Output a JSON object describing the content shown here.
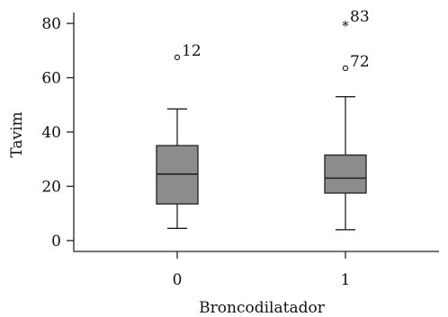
{
  "chart_data": {
    "type": "box",
    "xlabel": "Broncodilatador",
    "ylabel": "Tavim",
    "ylim": [
      -4,
      84
    ],
    "yticks": [
      0,
      20,
      40,
      60,
      80
    ],
    "grid": false,
    "box_color": "#8c8c8c",
    "line_color": "#222222",
    "categories": [
      {
        "label": "0",
        "min": 4.5,
        "q1": 13.5,
        "median": 24.5,
        "q3": 35,
        "max": 48.5,
        "outliers": [
          {
            "value": 67.5,
            "label": "12",
            "marker": "circle"
          }
        ]
      },
      {
        "label": "1",
        "min": 4,
        "q1": 17.5,
        "median": 23,
        "q3": 31.5,
        "max": 53,
        "outliers": [
          {
            "value": 63.5,
            "label": "72",
            "marker": "circle"
          },
          {
            "value": 80,
            "label": "83",
            "marker": "star"
          }
        ]
      }
    ]
  }
}
